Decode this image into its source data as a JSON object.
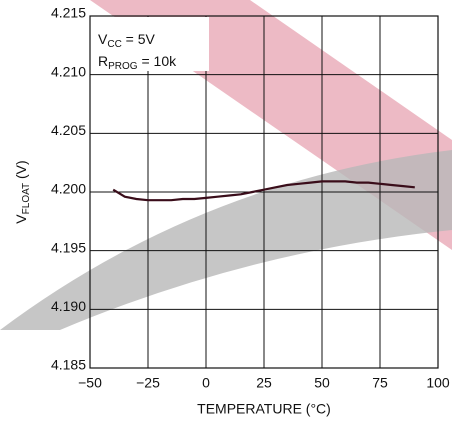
{
  "chart_data": {
    "type": "line",
    "x_label": "TEMPERATURE (°C)",
    "y_label": {
      "main": "V",
      "sub": "FLOAT",
      "rest": " (V)"
    },
    "annotations": [
      {
        "main": "V",
        "sub": "CC",
        "rest": " = 5V"
      },
      {
        "main": "R",
        "sub": "PROG",
        "rest": " = 10k"
      }
    ],
    "x": [
      -40,
      -35,
      -30,
      -25,
      -20,
      -15,
      -10,
      -5,
      0,
      5,
      10,
      15,
      20,
      25,
      30,
      35,
      40,
      45,
      50,
      55,
      60,
      65,
      70,
      75,
      80,
      85,
      90
    ],
    "series": [
      {
        "name": "VFLOAT",
        "color": "#3a0d1a",
        "values": [
          4.2002,
          4.1996,
          4.1994,
          4.1993,
          4.1993,
          4.1993,
          4.1994,
          4.1994,
          4.1995,
          4.1996,
          4.1997,
          4.1998,
          4.2,
          4.2002,
          4.2004,
          4.2006,
          4.2007,
          4.2008,
          4.2009,
          4.2009,
          4.2009,
          4.2008,
          4.2008,
          4.2007,
          4.2006,
          4.2005,
          4.2004
        ]
      }
    ],
    "xlim": [
      -50,
      100
    ],
    "ylim": [
      4.185,
      4.215
    ],
    "xticks": [
      {
        "value": -50,
        "label": "−50"
      },
      {
        "value": -25,
        "label": "−25"
      },
      0,
      25,
      50,
      75,
      100
    ],
    "yticks": [
      4.185,
      {
        "value": 4.19,
        "label": "4.190"
      },
      4.195,
      {
        "value": 4.2,
        "label": "4.200"
      },
      4.205,
      {
        "value": 4.21,
        "label": "4.210"
      },
      4.215
    ],
    "grid": true
  }
}
